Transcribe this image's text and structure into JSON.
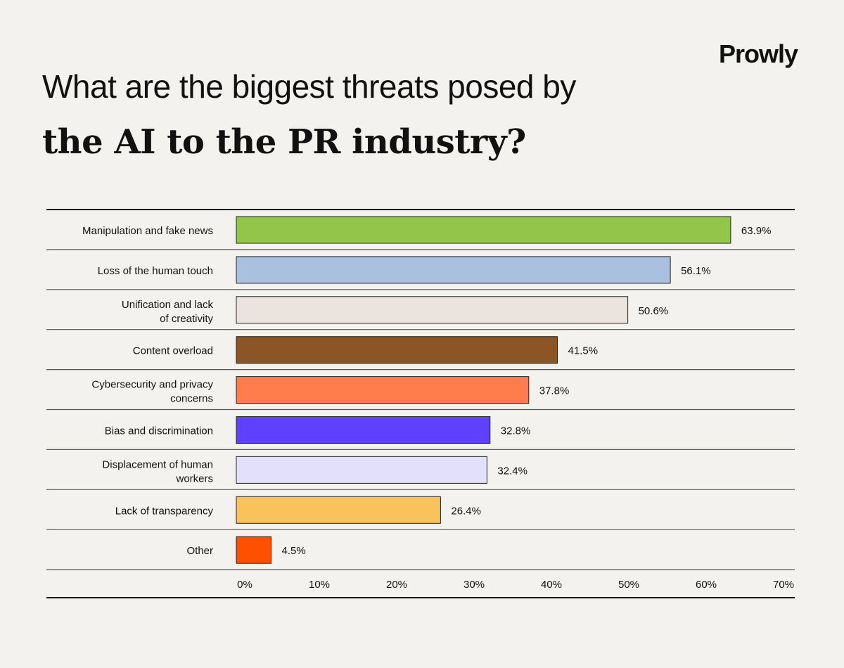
{
  "brand": "Prowly",
  "title_line1": "What are the biggest threats posed by",
  "title_line2": "the AI to the PR industry?",
  "chart_data": {
    "type": "bar",
    "orientation": "horizontal",
    "title": "What are the biggest threats posed by the AI to the PR industry?",
    "categories": [
      [
        "Manipulation and fake news"
      ],
      [
        "Loss of the human touch"
      ],
      [
        "Unification and lack",
        "of creativity"
      ],
      [
        "Content overload"
      ],
      [
        "Cybersecurity and privacy",
        "concerns"
      ],
      [
        "Bias and discrimination"
      ],
      [
        "Displacement of human",
        "workers"
      ],
      [
        "Lack of transparency"
      ],
      [
        "Other"
      ]
    ],
    "values": [
      63.9,
      56.1,
      50.6,
      41.5,
      37.8,
      32.8,
      32.4,
      26.4,
      4.5
    ],
    "value_labels": [
      "63.9%",
      "56.1%",
      "50.6%",
      "41.5%",
      "37.8%",
      "32.8%",
      "32.4%",
      "26.4%",
      "4.5%"
    ],
    "colors": [
      "#93c54b",
      "#aac0df",
      "#eae3de",
      "#8b5525",
      "#ff7c4c",
      "#6040ff",
      "#e2e0fb",
      "#f7c35a",
      "#ff4f00"
    ],
    "xlim": [
      0,
      70
    ],
    "xticks": [
      "0%",
      "10%",
      "20%",
      "30%",
      "40%",
      "50%",
      "60%",
      "70%"
    ],
    "grid": false,
    "legend": "none"
  }
}
